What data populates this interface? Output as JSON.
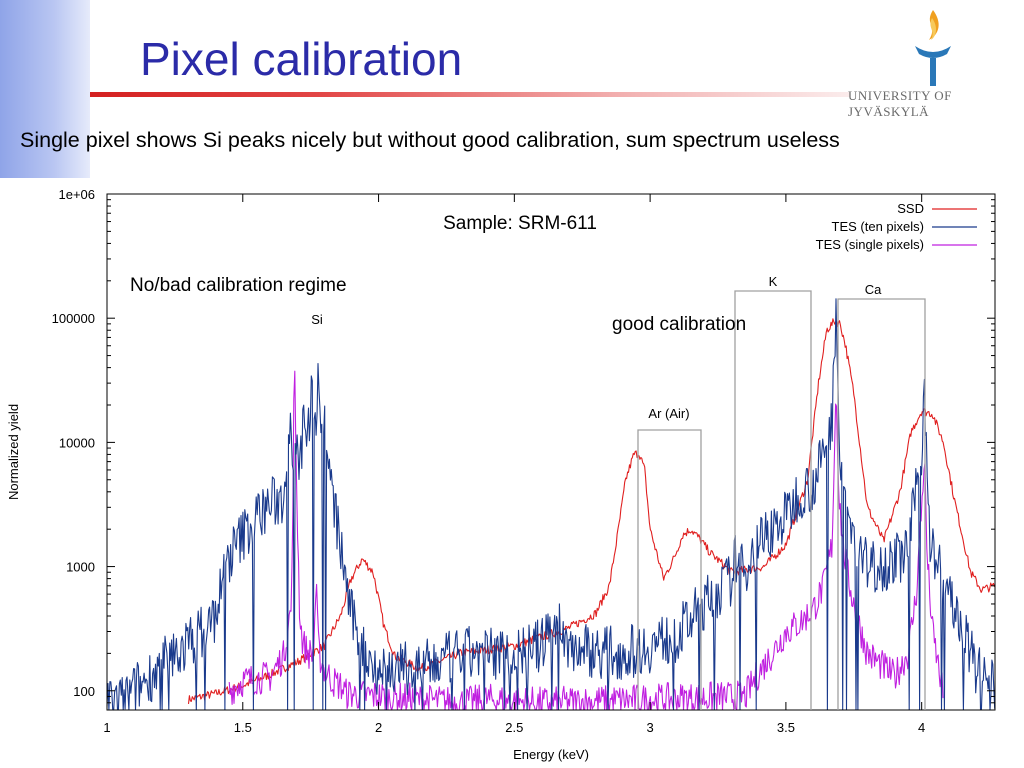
{
  "slide": {
    "title": "Pixel calibration",
    "subtitle": "Single pixel shows Si peaks nicely but without good calibration, sum spectrum useless",
    "logo_text": "UNIVERSITY OF JYVÄSKYLÄ"
  },
  "chart_data": {
    "type": "line",
    "title": "",
    "xlabel": "Energy (keV)",
    "ylabel": "Normalized yield",
    "xlim": [
      1,
      4.27
    ],
    "ylim": [
      70,
      1000000
    ],
    "yscale": "log",
    "grid": false,
    "legend_position": "top-right",
    "x_ticks": [
      1,
      1.5,
      2,
      2.5,
      3,
      3.5,
      4
    ],
    "x_tick_labels": [
      "1",
      "1.5",
      "2",
      "2.5",
      "3",
      "3.5",
      "4"
    ],
    "y_ticks": [
      100,
      1000,
      10000,
      100000,
      1000000
    ],
    "y_tick_labels": [
      "100",
      "1000",
      "10000",
      "100000",
      "1e+06"
    ],
    "series": [
      {
        "name": "SSD",
        "color": "#e02020",
        "x": [
          1.3,
          1.4,
          1.5,
          1.6,
          1.7,
          1.8,
          1.86,
          1.9,
          1.94,
          1.98,
          2.0,
          2.02,
          2.06,
          2.15,
          2.3,
          2.5,
          2.7,
          2.8,
          2.85,
          2.88,
          2.91,
          2.94,
          2.96,
          2.98,
          3.0,
          3.05,
          3.09,
          3.12,
          3.15,
          3.18,
          3.22,
          3.3,
          3.42,
          3.5,
          3.58,
          3.62,
          3.65,
          3.68,
          3.7,
          3.72,
          3.75,
          3.8,
          3.86,
          3.92,
          3.96,
          4.0,
          4.04,
          4.08,
          4.12,
          4.18,
          4.22,
          4.27
        ],
        "y": [
          85,
          95,
          110,
          135,
          170,
          230,
          400,
          800,
          1150,
          900,
          550,
          330,
          190,
          150,
          200,
          230,
          320,
          420,
          700,
          1800,
          5000,
          8000,
          8200,
          6000,
          2000,
          800,
          1200,
          1800,
          2000,
          1700,
          1300,
          900,
          1000,
          1500,
          5000,
          30000,
          80000,
          95000,
          90000,
          60000,
          25000,
          3000,
          1600,
          4000,
          12000,
          18000,
          17000,
          10000,
          3500,
          900,
          650,
          700
        ]
      },
      {
        "name": "TES (ten pixels)",
        "color": "#1a3a8c",
        "x": [
          1.0,
          1.05,
          1.1,
          1.2,
          1.3,
          1.35,
          1.4,
          1.42,
          1.45,
          1.5,
          1.55,
          1.6,
          1.65,
          1.67,
          1.69,
          1.7,
          1.71,
          1.73,
          1.74,
          1.755,
          1.77,
          1.78,
          1.79,
          1.8,
          1.82,
          1.85,
          1.9,
          1.95,
          2.0,
          2.1,
          2.2,
          2.3,
          2.4,
          2.5,
          2.6,
          2.65,
          2.7,
          2.8,
          2.9,
          3.0,
          3.1,
          3.2,
          3.3,
          3.32,
          3.34,
          3.4,
          3.5,
          3.55,
          3.6,
          3.64,
          3.67,
          3.685,
          3.695,
          3.71,
          3.73,
          3.76,
          3.8,
          3.9,
          3.95,
          4.0,
          4.01,
          4.02,
          4.03,
          4.05,
          4.1,
          4.15,
          4.2,
          4.27
        ],
        "y": [
          85,
          80,
          100,
          160,
          240,
          300,
          400,
          700,
          1200,
          1800,
          2500,
          3200,
          3500,
          15000,
          8000,
          12000,
          6000,
          20000,
          10000,
          40000,
          15000,
          40000,
          12000,
          15000,
          5000,
          2000,
          400,
          200,
          150,
          150,
          160,
          200,
          200,
          200,
          230,
          380,
          230,
          210,
          200,
          230,
          280,
          500,
          800,
          1300,
          900,
          1600,
          2500,
          4000,
          4500,
          8000,
          15000,
          150000,
          12000,
          5000,
          2500,
          1400,
          1000,
          1100,
          1400,
          8000,
          30000,
          8000,
          1500,
          1200,
          600,
          300,
          150,
          100
        ]
      },
      {
        "name": "TES (single pixels)",
        "color": "#c020e0",
        "x": [
          1.45,
          1.5,
          1.6,
          1.65,
          1.68,
          1.69,
          1.7,
          1.71,
          1.72,
          1.74,
          1.76,
          1.77,
          1.78,
          1.8,
          1.83,
          1.86,
          1.88,
          2.3,
          2.4,
          2.6,
          3.35,
          3.4,
          3.45,
          3.5,
          3.55,
          3.6,
          3.64,
          3.67,
          3.685,
          3.695,
          3.71,
          3.73,
          3.76,
          3.8,
          3.9,
          3.95,
          3.98,
          4.0,
          4.01,
          4.02,
          4.04,
          4.08
        ],
        "y": [
          100,
          120,
          130,
          190,
          500,
          45000,
          3000,
          400,
          250,
          200,
          200,
          700,
          200,
          150,
          120,
          110,
          95,
          80,
          85,
          80,
          90,
          140,
          200,
          300,
          350,
          450,
          700,
          1500,
          30000,
          4000,
          1500,
          800,
          400,
          200,
          130,
          200,
          600,
          3000,
          8000,
          1200,
          300,
          90
        ]
      }
    ],
    "annotations": [
      {
        "text": "Sample: SRM-611"
      },
      {
        "text": "No/bad calibration regime"
      },
      {
        "text": "good calibration"
      },
      {
        "text": "Si"
      },
      {
        "text": "Ar (Air)"
      },
      {
        "text": "K"
      },
      {
        "text": "Ca"
      }
    ]
  }
}
